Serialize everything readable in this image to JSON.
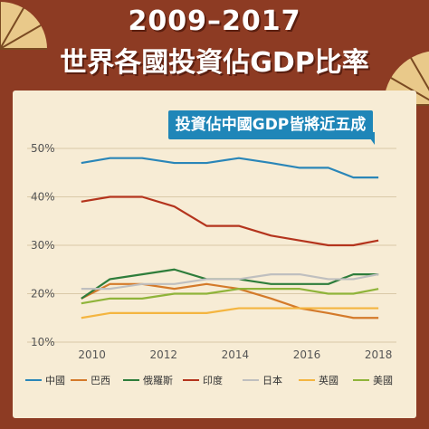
{
  "header": {
    "title_line1": "2009–2017",
    "title_line2": "世界各國投資佔GDP比率"
  },
  "callout": "投資佔中國GDP皆將近五成",
  "colors": {
    "background": "#8d3b23",
    "card": "#f7ecd5"
  },
  "chart_data": {
    "type": "line",
    "title": "2009–2017 世界各國投資佔GDP比率",
    "xlabel": "",
    "ylabel": "",
    "x": [
      2009,
      2010,
      2011,
      2012,
      2013,
      2014,
      2015,
      2016,
      2017
    ],
    "xticks": [
      2010,
      2012,
      2014,
      2016,
      2018
    ],
    "xlim": [
      2009.3,
      2018.3
    ],
    "ylim": [
      10,
      50
    ],
    "yticks": [
      10,
      20,
      30,
      40,
      50
    ],
    "ytick_labels": [
      "10%",
      "20%",
      "30%",
      "40%",
      "50%"
    ],
    "grid": "horizontal",
    "legend_position": "bottom",
    "series": [
      {
        "name": "中國",
        "color": "#2a86b8",
        "x": [
          2009.7,
          2010.5,
          2011.4,
          2012.3,
          2013.2,
          2014.1,
          2015.0,
          2015.8,
          2016.6,
          2017.3,
          2018.0
        ],
        "values": [
          47,
          48,
          48,
          47,
          47,
          48,
          47,
          46,
          46,
          44,
          44
        ]
      },
      {
        "name": "巴西",
        "color": "#d47a2a",
        "x": [
          2009.7,
          2010.5,
          2011.4,
          2012.3,
          2013.2,
          2014.1,
          2015.0,
          2015.8,
          2016.6,
          2017.3,
          2018.0
        ],
        "values": [
          19,
          22,
          22,
          21,
          22,
          21,
          19,
          17,
          16,
          15,
          15
        ]
      },
      {
        "name": "俄羅斯",
        "color": "#2e7d3b",
        "x": [
          2009.7,
          2010.5,
          2011.4,
          2012.3,
          2013.2,
          2014.1,
          2015.0,
          2015.8,
          2016.6,
          2017.3,
          2018.0
        ],
        "values": [
          19,
          23,
          24,
          25,
          23,
          23,
          22,
          22,
          22,
          24,
          24
        ]
      },
      {
        "name": "印度",
        "color": "#b4341d",
        "x": [
          2009.7,
          2010.5,
          2011.4,
          2012.3,
          2013.2,
          2014.1,
          2015.0,
          2015.8,
          2016.6,
          2017.3,
          2018.0
        ],
        "values": [
          39,
          40,
          40,
          38,
          34,
          34,
          32,
          31,
          30,
          30,
          31
        ]
      },
      {
        "name": "日本",
        "color": "#bfbfbf",
        "x": [
          2009.7,
          2010.5,
          2011.4,
          2012.3,
          2013.2,
          2014.1,
          2015.0,
          2015.8,
          2016.6,
          2017.3,
          2018.0
        ],
        "values": [
          21,
          21,
          22,
          22,
          23,
          23,
          24,
          24,
          23,
          23,
          24
        ]
      },
      {
        "name": "英國",
        "color": "#f4b540",
        "x": [
          2009.7,
          2010.5,
          2011.4,
          2012.3,
          2013.2,
          2014.1,
          2015.0,
          2015.8,
          2016.6,
          2017.3,
          2018.0
        ],
        "values": [
          15,
          16,
          16,
          16,
          16,
          17,
          17,
          17,
          17,
          17,
          17
        ]
      },
      {
        "name": "美國",
        "color": "#8fb43a",
        "x": [
          2009.7,
          2010.5,
          2011.4,
          2012.3,
          2013.2,
          2014.1,
          2015.0,
          2015.8,
          2016.6,
          2017.3,
          2018.0
        ],
        "values": [
          18,
          19,
          19,
          20,
          20,
          21,
          21,
          21,
          20,
          20,
          21
        ]
      }
    ]
  }
}
